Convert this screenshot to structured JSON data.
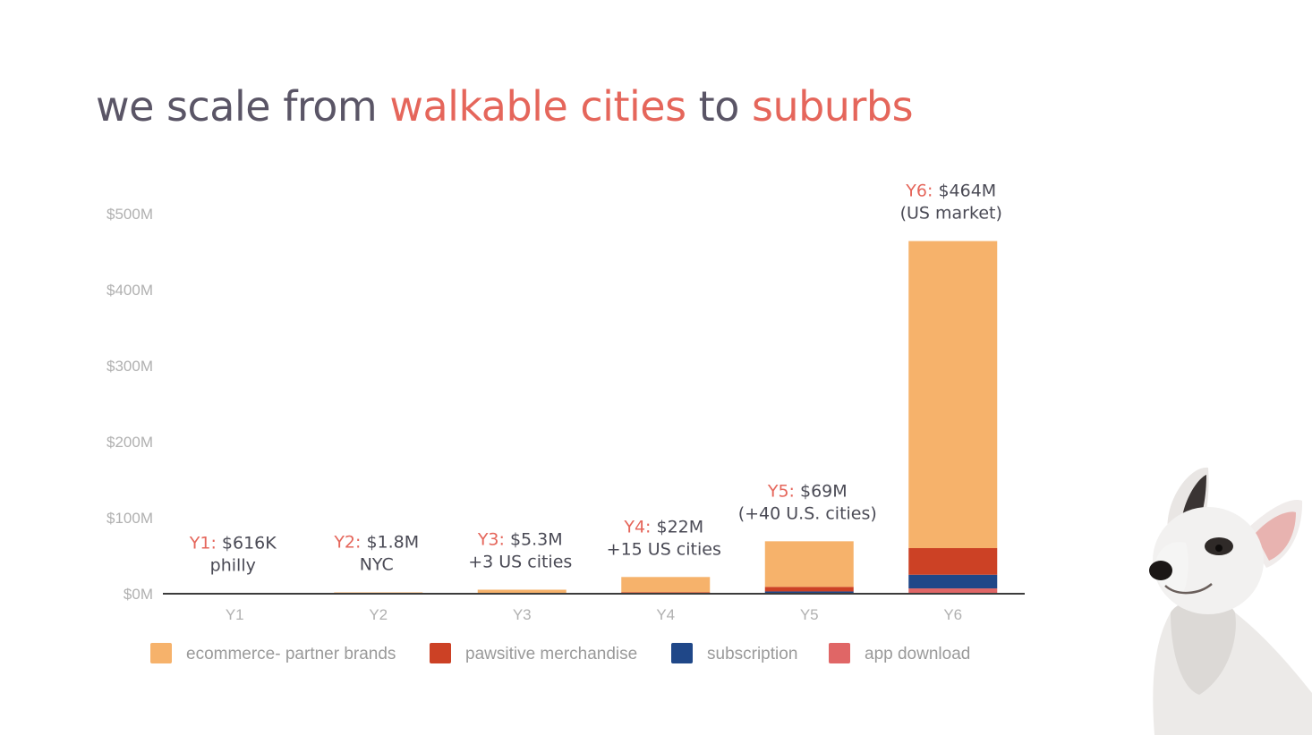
{
  "title": {
    "part1": "we scale from ",
    "highlight1": "walkable cities",
    "part2": " to ",
    "highlight2": "suburbs"
  },
  "chart_data": {
    "type": "bar",
    "stacked": true,
    "categories": [
      "Y1",
      "Y2",
      "Y3",
      "Y4",
      "Y5",
      "Y6"
    ],
    "y_ticks": [
      "$0M",
      "$100M",
      "$200M",
      "$300M",
      "$400M",
      "$500M"
    ],
    "ylim": [
      0,
      500
    ],
    "ylabel_unit": "$M",
    "series": [
      {
        "name": "app download",
        "color": "#e06666",
        "values": [
          0,
          0,
          0,
          0,
          0,
          7
        ]
      },
      {
        "name": "subscription",
        "color": "#1f4788",
        "values": [
          0,
          0,
          0,
          0,
          3,
          18
        ]
      },
      {
        "name": "pawsitive merchandise",
        "color": "#cc4125",
        "values": [
          0,
          0,
          0.3,
          2,
          6,
          35
        ]
      },
      {
        "name": "ecommerce- partner brands",
        "color": "#f6b26b",
        "values": [
          0.6,
          1.8,
          5,
          20,
          60,
          404
        ]
      }
    ],
    "legend_order": [
      "ecommerce- partner brands",
      "pawsitive merchandise",
      "subscription",
      "app download"
    ],
    "annotations": [
      {
        "year": "Y1:",
        "value": "$616K",
        "note": "philly"
      },
      {
        "year": "Y2:",
        "value": "$1.8M",
        "note": "NYC"
      },
      {
        "year": "Y3:",
        "value": "$5.3M",
        "note": "+3 US cities"
      },
      {
        "year": "Y4:",
        "value": "$22M",
        "note": "+15 US cities"
      },
      {
        "year": "Y5:",
        "value": "$69M",
        "note": "(+40 U.S. cities)"
      },
      {
        "year": "Y6:",
        "value": "$464M",
        "note": "(US market)"
      }
    ]
  }
}
